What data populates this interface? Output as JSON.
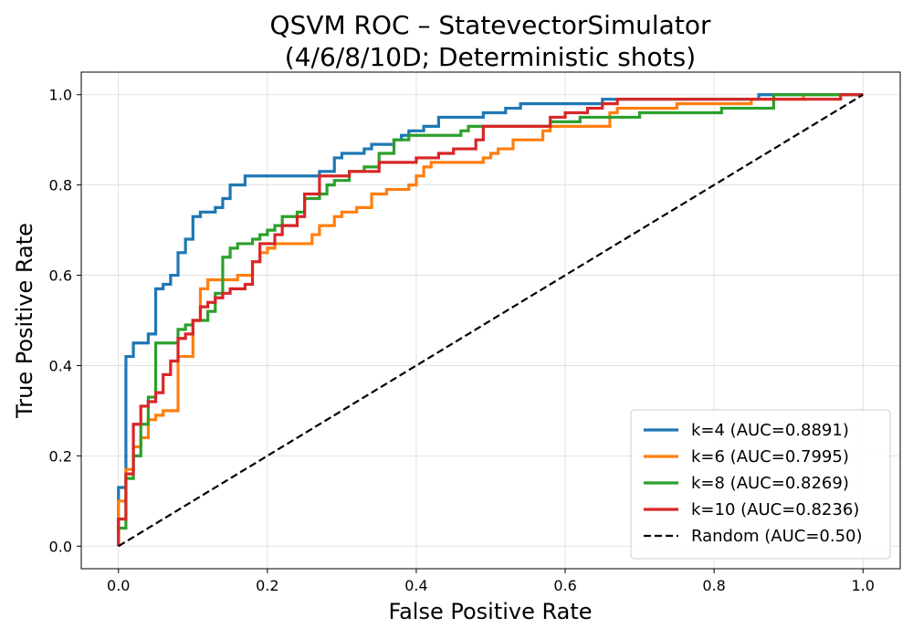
{
  "chart_data": {
    "type": "line",
    "title": "QSVM ROC – StatevectorSimulator",
    "subtitle": "(4/6/8/10D; Deterministic shots)",
    "xlabel": "False Positive Rate",
    "ylabel": "True Positive Rate",
    "xlim": [
      -0.05,
      1.05
    ],
    "ylim": [
      -0.05,
      1.05
    ],
    "x_ticks": [
      "0.0",
      "0.2",
      "0.4",
      "0.6",
      "0.8",
      "1.0"
    ],
    "y_ticks": [
      "0.0",
      "0.2",
      "0.4",
      "0.6",
      "0.8",
      "1.0"
    ],
    "grid": true,
    "legend_position": "bottom-right",
    "series": [
      {
        "name": "k=4 (AUC=0.8891)",
        "color": "#1f77b4",
        "style": "solid",
        "points": [
          [
            0,
            0
          ],
          [
            0,
            0.13
          ],
          [
            0.01,
            0.13
          ],
          [
            0.01,
            0.42
          ],
          [
            0.02,
            0.42
          ],
          [
            0.02,
            0.45
          ],
          [
            0.04,
            0.45
          ],
          [
            0.04,
            0.47
          ],
          [
            0.05,
            0.47
          ],
          [
            0.05,
            0.57
          ],
          [
            0.06,
            0.57
          ],
          [
            0.06,
            0.58
          ],
          [
            0.07,
            0.58
          ],
          [
            0.07,
            0.6
          ],
          [
            0.08,
            0.6
          ],
          [
            0.08,
            0.65
          ],
          [
            0.09,
            0.65
          ],
          [
            0.09,
            0.68
          ],
          [
            0.1,
            0.68
          ],
          [
            0.1,
            0.73
          ],
          [
            0.11,
            0.73
          ],
          [
            0.11,
            0.74
          ],
          [
            0.13,
            0.74
          ],
          [
            0.13,
            0.75
          ],
          [
            0.14,
            0.75
          ],
          [
            0.14,
            0.77
          ],
          [
            0.15,
            0.77
          ],
          [
            0.15,
            0.8
          ],
          [
            0.17,
            0.8
          ],
          [
            0.17,
            0.82
          ],
          [
            0.27,
            0.82
          ],
          [
            0.27,
            0.83
          ],
          [
            0.29,
            0.83
          ],
          [
            0.29,
            0.86
          ],
          [
            0.3,
            0.86
          ],
          [
            0.3,
            0.87
          ],
          [
            0.33,
            0.87
          ],
          [
            0.33,
            0.88
          ],
          [
            0.34,
            0.88
          ],
          [
            0.34,
            0.89
          ],
          [
            0.37,
            0.89
          ],
          [
            0.37,
            0.9
          ],
          [
            0.38,
            0.9
          ],
          [
            0.38,
            0.91
          ],
          [
            0.39,
            0.91
          ],
          [
            0.39,
            0.92
          ],
          [
            0.41,
            0.92
          ],
          [
            0.41,
            0.93
          ],
          [
            0.43,
            0.93
          ],
          [
            0.43,
            0.95
          ],
          [
            0.49,
            0.95
          ],
          [
            0.49,
            0.96
          ],
          [
            0.52,
            0.96
          ],
          [
            0.52,
            0.97
          ],
          [
            0.54,
            0.97
          ],
          [
            0.54,
            0.98
          ],
          [
            0.65,
            0.98
          ],
          [
            0.65,
            0.99
          ],
          [
            0.86,
            0.99
          ],
          [
            0.86,
            1.0
          ],
          [
            1.0,
            1.0
          ]
        ]
      },
      {
        "name": "k=6 (AUC=0.7995)",
        "color": "#ff7f0e",
        "style": "solid",
        "points": [
          [
            0,
            0
          ],
          [
            0,
            0.1
          ],
          [
            0.01,
            0.1
          ],
          [
            0.01,
            0.17
          ],
          [
            0.02,
            0.17
          ],
          [
            0.02,
            0.22
          ],
          [
            0.03,
            0.22
          ],
          [
            0.03,
            0.24
          ],
          [
            0.04,
            0.24
          ],
          [
            0.04,
            0.28
          ],
          [
            0.05,
            0.28
          ],
          [
            0.05,
            0.29
          ],
          [
            0.06,
            0.29
          ],
          [
            0.06,
            0.3
          ],
          [
            0.08,
            0.3
          ],
          [
            0.08,
            0.42
          ],
          [
            0.1,
            0.42
          ],
          [
            0.1,
            0.5
          ],
          [
            0.11,
            0.5
          ],
          [
            0.11,
            0.57
          ],
          [
            0.12,
            0.57
          ],
          [
            0.12,
            0.59
          ],
          [
            0.16,
            0.59
          ],
          [
            0.16,
            0.6
          ],
          [
            0.18,
            0.6
          ],
          [
            0.18,
            0.63
          ],
          [
            0.19,
            0.63
          ],
          [
            0.19,
            0.65
          ],
          [
            0.2,
            0.65
          ],
          [
            0.2,
            0.66
          ],
          [
            0.21,
            0.66
          ],
          [
            0.21,
            0.67
          ],
          [
            0.26,
            0.67
          ],
          [
            0.26,
            0.69
          ],
          [
            0.27,
            0.69
          ],
          [
            0.27,
            0.71
          ],
          [
            0.29,
            0.71
          ],
          [
            0.29,
            0.73
          ],
          [
            0.3,
            0.73
          ],
          [
            0.3,
            0.74
          ],
          [
            0.32,
            0.74
          ],
          [
            0.32,
            0.75
          ],
          [
            0.34,
            0.75
          ],
          [
            0.34,
            0.76
          ],
          [
            0.34,
            0.76
          ],
          [
            0.34,
            0.78
          ],
          [
            0.36,
            0.78
          ],
          [
            0.36,
            0.79
          ],
          [
            0.39,
            0.79
          ],
          [
            0.39,
            0.8
          ],
          [
            0.4,
            0.8
          ],
          [
            0.4,
            0.82
          ],
          [
            0.41,
            0.82
          ],
          [
            0.41,
            0.84
          ],
          [
            0.42,
            0.84
          ],
          [
            0.42,
            0.85
          ],
          [
            0.49,
            0.85
          ],
          [
            0.49,
            0.86
          ],
          [
            0.5,
            0.86
          ],
          [
            0.5,
            0.87
          ],
          [
            0.51,
            0.87
          ],
          [
            0.51,
            0.88
          ],
          [
            0.53,
            0.88
          ],
          [
            0.53,
            0.9
          ],
          [
            0.57,
            0.9
          ],
          [
            0.57,
            0.92
          ],
          [
            0.58,
            0.92
          ],
          [
            0.58,
            0.93
          ],
          [
            0.66,
            0.93
          ],
          [
            0.66,
            0.96
          ],
          [
            0.67,
            0.96
          ],
          [
            0.67,
            0.97
          ],
          [
            0.75,
            0.97
          ],
          [
            0.75,
            0.98
          ],
          [
            0.85,
            0.98
          ],
          [
            0.85,
            0.99
          ],
          [
            0.92,
            0.99
          ],
          [
            0.92,
            1.0
          ],
          [
            1.0,
            1.0
          ]
        ]
      },
      {
        "name": "k=8 (AUC=0.8269)",
        "color": "#2ca02c",
        "style": "solid",
        "points": [
          [
            0,
            0
          ],
          [
            0,
            0.04
          ],
          [
            0.01,
            0.04
          ],
          [
            0.01,
            0.15
          ],
          [
            0.02,
            0.15
          ],
          [
            0.02,
            0.2
          ],
          [
            0.03,
            0.2
          ],
          [
            0.03,
            0.27
          ],
          [
            0.04,
            0.27
          ],
          [
            0.04,
            0.33
          ],
          [
            0.05,
            0.33
          ],
          [
            0.05,
            0.45
          ],
          [
            0.08,
            0.45
          ],
          [
            0.08,
            0.48
          ],
          [
            0.09,
            0.48
          ],
          [
            0.09,
            0.49
          ],
          [
            0.1,
            0.49
          ],
          [
            0.1,
            0.5
          ],
          [
            0.12,
            0.5
          ],
          [
            0.12,
            0.52
          ],
          [
            0.13,
            0.52
          ],
          [
            0.13,
            0.56
          ],
          [
            0.14,
            0.56
          ],
          [
            0.14,
            0.64
          ],
          [
            0.15,
            0.64
          ],
          [
            0.15,
            0.66
          ],
          [
            0.16,
            0.66
          ],
          [
            0.16,
            0.67
          ],
          [
            0.18,
            0.67
          ],
          [
            0.18,
            0.68
          ],
          [
            0.19,
            0.68
          ],
          [
            0.19,
            0.69
          ],
          [
            0.2,
            0.69
          ],
          [
            0.2,
            0.7
          ],
          [
            0.21,
            0.7
          ],
          [
            0.21,
            0.71
          ],
          [
            0.22,
            0.71
          ],
          [
            0.22,
            0.73
          ],
          [
            0.24,
            0.73
          ],
          [
            0.24,
            0.74
          ],
          [
            0.25,
            0.74
          ],
          [
            0.25,
            0.77
          ],
          [
            0.27,
            0.77
          ],
          [
            0.27,
            0.78
          ],
          [
            0.28,
            0.78
          ],
          [
            0.28,
            0.8
          ],
          [
            0.29,
            0.8
          ],
          [
            0.29,
            0.81
          ],
          [
            0.31,
            0.81
          ],
          [
            0.31,
            0.83
          ],
          [
            0.33,
            0.83
          ],
          [
            0.33,
            0.84
          ],
          [
            0.35,
            0.84
          ],
          [
            0.35,
            0.87
          ],
          [
            0.37,
            0.87
          ],
          [
            0.37,
            0.9
          ],
          [
            0.39,
            0.9
          ],
          [
            0.39,
            0.91
          ],
          [
            0.46,
            0.91
          ],
          [
            0.46,
            0.92
          ],
          [
            0.47,
            0.92
          ],
          [
            0.47,
            0.93
          ],
          [
            0.58,
            0.93
          ],
          [
            0.58,
            0.94
          ],
          [
            0.62,
            0.94
          ],
          [
            0.62,
            0.95
          ],
          [
            0.7,
            0.95
          ],
          [
            0.7,
            0.96
          ],
          [
            0.81,
            0.96
          ],
          [
            0.81,
            0.97
          ],
          [
            0.88,
            0.97
          ],
          [
            0.88,
            0.98
          ],
          [
            0.88,
            0.98
          ],
          [
            0.88,
            1.0
          ],
          [
            1.0,
            1.0
          ]
        ]
      },
      {
        "name": "k=10 (AUC=0.8236)",
        "color": "#d62728",
        "style": "solid",
        "points": [
          [
            0,
            0
          ],
          [
            0,
            0.06
          ],
          [
            0.01,
            0.06
          ],
          [
            0.01,
            0.16
          ],
          [
            0.02,
            0.16
          ],
          [
            0.02,
            0.27
          ],
          [
            0.03,
            0.27
          ],
          [
            0.03,
            0.31
          ],
          [
            0.04,
            0.31
          ],
          [
            0.04,
            0.32
          ],
          [
            0.05,
            0.32
          ],
          [
            0.05,
            0.34
          ],
          [
            0.06,
            0.34
          ],
          [
            0.06,
            0.38
          ],
          [
            0.07,
            0.38
          ],
          [
            0.07,
            0.41
          ],
          [
            0.08,
            0.41
          ],
          [
            0.08,
            0.46
          ],
          [
            0.09,
            0.46
          ],
          [
            0.09,
            0.47
          ],
          [
            0.1,
            0.47
          ],
          [
            0.1,
            0.5
          ],
          [
            0.11,
            0.5
          ],
          [
            0.11,
            0.53
          ],
          [
            0.12,
            0.53
          ],
          [
            0.12,
            0.54
          ],
          [
            0.13,
            0.54
          ],
          [
            0.13,
            0.55
          ],
          [
            0.14,
            0.55
          ],
          [
            0.14,
            0.56
          ],
          [
            0.15,
            0.56
          ],
          [
            0.15,
            0.57
          ],
          [
            0.17,
            0.57
          ],
          [
            0.17,
            0.58
          ],
          [
            0.18,
            0.58
          ],
          [
            0.18,
            0.63
          ],
          [
            0.19,
            0.63
          ],
          [
            0.19,
            0.67
          ],
          [
            0.21,
            0.67
          ],
          [
            0.21,
            0.69
          ],
          [
            0.22,
            0.69
          ],
          [
            0.22,
            0.71
          ],
          [
            0.24,
            0.71
          ],
          [
            0.24,
            0.73
          ],
          [
            0.25,
            0.73
          ],
          [
            0.25,
            0.78
          ],
          [
            0.27,
            0.78
          ],
          [
            0.27,
            0.82
          ],
          [
            0.31,
            0.82
          ],
          [
            0.31,
            0.83
          ],
          [
            0.35,
            0.83
          ],
          [
            0.35,
            0.85
          ],
          [
            0.4,
            0.85
          ],
          [
            0.4,
            0.86
          ],
          [
            0.43,
            0.86
          ],
          [
            0.43,
            0.87
          ],
          [
            0.45,
            0.87
          ],
          [
            0.45,
            0.88
          ],
          [
            0.48,
            0.88
          ],
          [
            0.48,
            0.9
          ],
          [
            0.49,
            0.9
          ],
          [
            0.49,
            0.93
          ],
          [
            0.58,
            0.93
          ],
          [
            0.58,
            0.95
          ],
          [
            0.6,
            0.95
          ],
          [
            0.6,
            0.96
          ],
          [
            0.63,
            0.96
          ],
          [
            0.63,
            0.97
          ],
          [
            0.65,
            0.97
          ],
          [
            0.65,
            0.98
          ],
          [
            0.67,
            0.98
          ],
          [
            0.67,
            0.99
          ],
          [
            0.97,
            0.99
          ],
          [
            0.97,
            1.0
          ],
          [
            1.0,
            1.0
          ]
        ]
      },
      {
        "name": "Random (AUC=0.50)",
        "color": "#000000",
        "style": "dashed",
        "points": [
          [
            0,
            0
          ],
          [
            1,
            1
          ]
        ]
      }
    ]
  }
}
